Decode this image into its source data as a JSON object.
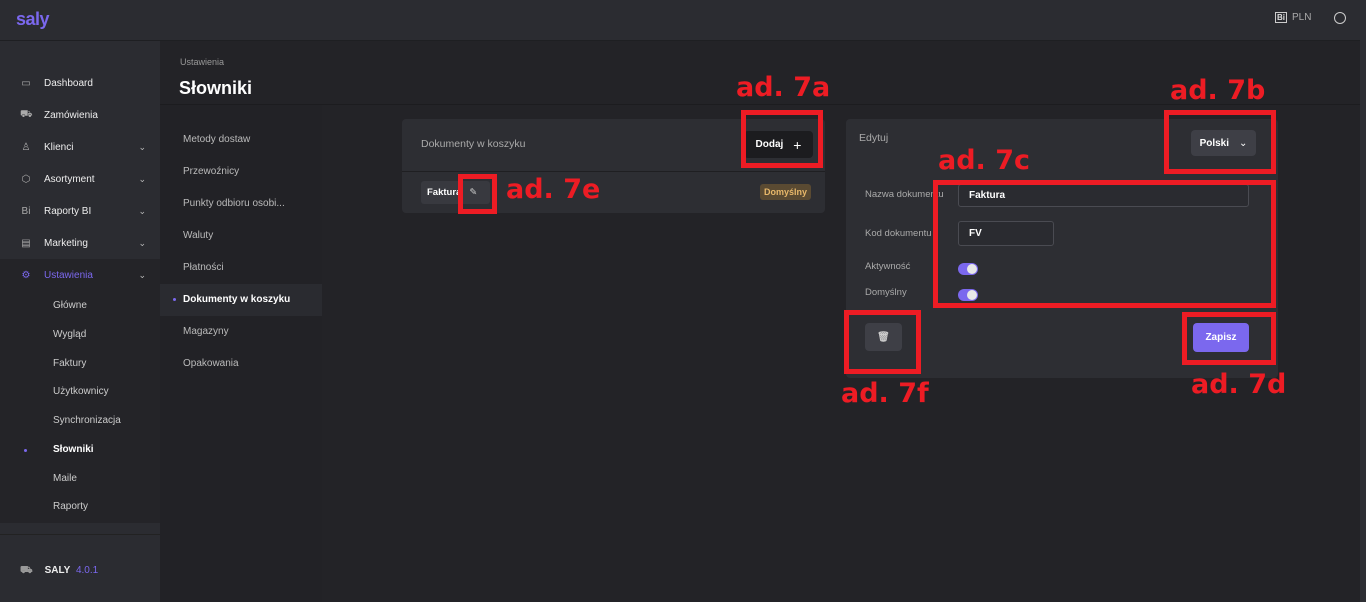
{
  "header": {
    "logo": "saly",
    "currency": "PLN",
    "currency_icon": "bi-icon",
    "user_icon": "user-circle-icon"
  },
  "sidebar": {
    "items": [
      {
        "label": "Dashboard",
        "icon": "monitor-icon",
        "expandable": false
      },
      {
        "label": "Zamówienia",
        "icon": "cart-icon",
        "expandable": false
      },
      {
        "label": "Klienci",
        "icon": "user-icon",
        "expandable": true
      },
      {
        "label": "Asortyment",
        "icon": "box-icon",
        "expandable": true
      },
      {
        "label": "Raporty BI",
        "icon": "bi-icon",
        "expandable": true
      },
      {
        "label": "Marketing",
        "icon": "newspaper-icon",
        "expandable": true
      },
      {
        "label": "Ustawienia",
        "icon": "gear-icon",
        "expandable": true,
        "active": true
      }
    ],
    "subitems": [
      "Główne",
      "Wygląd",
      "Faktury",
      "Użytkownicy",
      "Synchronizacja",
      "Słowniki",
      "Maile",
      "Raporty"
    ],
    "active_subitem": "Słowniki",
    "app_name": "SALY",
    "version": "4.0.1"
  },
  "page": {
    "breadcrumb": "Ustawienia",
    "title": "Słowniki"
  },
  "dict_nav": [
    "Metody dostaw",
    "Przewoźnicy",
    "Punkty odbioru osobi...",
    "Waluty",
    "Płatności",
    "Dokumenty w koszyku",
    "Magazyny",
    "Opakowania"
  ],
  "dict_active": "Dokumenty w koszyku",
  "list_card": {
    "title": "Dokumenty w koszyku",
    "add_label": "Dodaj",
    "items": [
      {
        "name": "Faktura",
        "badge": "Domyślny"
      }
    ]
  },
  "edit_card": {
    "title": "Edytuj",
    "language": "Polski",
    "fields": {
      "name_label": "Nazwa dokumentu",
      "name_value": "Faktura",
      "code_label": "Kod dokumentu",
      "code_value": "FV",
      "active_label": "Aktywność",
      "active_value": true,
      "default_label": "Domyślny",
      "default_value": true
    },
    "save_label": "Zapisz"
  },
  "annotations": {
    "a": "ad. 7a",
    "b": "ad. 7b",
    "c": "ad. 7c",
    "d": "ad. 7d",
    "e": "ad. 7e",
    "f": "ad. 7f",
    "color": "#ed1c24"
  },
  "colors": {
    "accent": "#7b68ee",
    "badge_bg": "#5a4a32",
    "badge_text": "#e8b86a"
  }
}
